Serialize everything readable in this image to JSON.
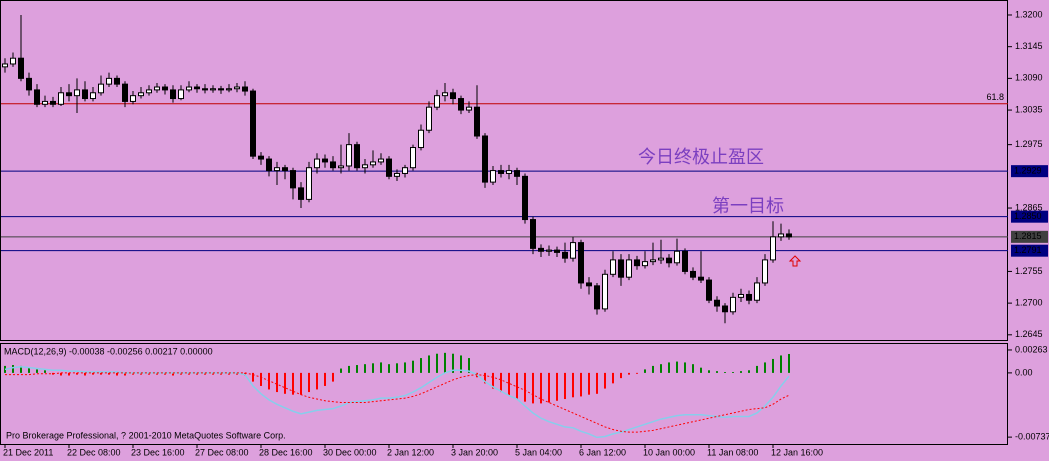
{
  "chart_data": [
    {
      "type": "candlestick",
      "categories": [
        "21 Dec 2011",
        null,
        null,
        null,
        null,
        null,
        null,
        null,
        "22 Dec 08:00",
        null,
        null,
        null,
        null,
        null,
        null,
        null,
        "23 Dec 16:00",
        null,
        null,
        null,
        null,
        null,
        null,
        null,
        "27 Dec 08:00",
        null,
        null,
        null,
        null,
        null,
        null,
        null,
        "28 Dec 16:00",
        null,
        null,
        null,
        null,
        null,
        null,
        null,
        "30 Dec 00:00",
        null,
        null,
        null,
        null,
        null,
        null,
        null,
        "2 Jan 12:00",
        null,
        null,
        null,
        null,
        null,
        null,
        null,
        "3 Jan 20:00",
        null,
        null,
        null,
        null,
        null,
        null,
        null,
        "5 Jan 04:00",
        null,
        null,
        null,
        null,
        null,
        null,
        null,
        "6 Jan 12:00",
        null,
        null,
        null,
        null,
        null,
        null,
        null,
        "10 Jan 00:00",
        null,
        null,
        null,
        null,
        null,
        null,
        null,
        "11 Jan 08:00",
        null,
        null,
        null,
        null,
        null,
        null,
        null,
        "12 Jan 16:00",
        null,
        null
      ],
      "ohlc": [
        [
          1.311,
          1.3125,
          1.31,
          1.3115
        ],
        [
          1.3115,
          1.3135,
          1.311,
          1.3125
        ],
        [
          1.3125,
          1.32,
          1.3085,
          1.309
        ],
        [
          1.309,
          1.31,
          1.306,
          1.307
        ],
        [
          1.307,
          1.308,
          1.304,
          1.3045
        ],
        [
          1.3045,
          1.306,
          1.304,
          1.305
        ],
        [
          1.305,
          1.3058,
          1.304,
          1.3045
        ],
        [
          1.3045,
          1.3075,
          1.3042,
          1.3065
        ],
        [
          1.3065,
          1.308,
          1.305,
          1.306
        ],
        [
          1.306,
          1.309,
          1.303,
          1.307
        ],
        [
          1.307,
          1.3085,
          1.305,
          1.3055
        ],
        [
          1.3055,
          1.3075,
          1.305,
          1.3065
        ],
        [
          1.3065,
          1.3095,
          1.306,
          1.308
        ],
        [
          1.308,
          1.31,
          1.3075,
          1.309
        ],
        [
          1.309,
          1.3095,
          1.3075,
          1.308
        ],
        [
          1.308,
          1.3085,
          1.304,
          1.305
        ],
        [
          1.305,
          1.3068,
          1.3045,
          1.306
        ],
        [
          1.306,
          1.3075,
          1.3055,
          1.3065
        ],
        [
          1.3065,
          1.3078,
          1.306,
          1.307
        ],
        [
          1.307,
          1.3082,
          1.3065,
          1.3075
        ],
        [
          1.3075,
          1.308,
          1.3062,
          1.307
        ],
        [
          1.307,
          1.3078,
          1.3048,
          1.3055
        ],
        [
          1.3055,
          1.3078,
          1.3052,
          1.307
        ],
        [
          1.307,
          1.3085,
          1.3066,
          1.3075
        ],
        [
          1.3075,
          1.308,
          1.3065,
          1.3072
        ],
        [
          1.3072,
          1.308,
          1.3064,
          1.307
        ],
        [
          1.307,
          1.3078,
          1.3065,
          1.3072
        ],
        [
          1.3072,
          1.3077,
          1.3063,
          1.307
        ],
        [
          1.307,
          1.308,
          1.3066,
          1.3072
        ],
        [
          1.3072,
          1.3082,
          1.3066,
          1.3075
        ],
        [
          1.3075,
          1.3085,
          1.306,
          1.3068
        ],
        [
          1.3068,
          1.3072,
          1.295,
          1.2955
        ],
        [
          1.2955,
          1.2962,
          1.294,
          1.295
        ],
        [
          1.295,
          1.2955,
          1.292,
          1.293
        ],
        [
          1.293,
          1.2945,
          1.2905,
          1.2935
        ],
        [
          1.2935,
          1.294,
          1.2915,
          1.293
        ],
        [
          1.293,
          1.2935,
          1.288,
          1.29
        ],
        [
          1.29,
          1.291,
          1.2865,
          1.288
        ],
        [
          1.288,
          1.2945,
          1.2875,
          1.2935
        ],
        [
          1.2935,
          1.296,
          1.2925,
          1.295
        ],
        [
          1.295,
          1.2958,
          1.2935,
          1.2945
        ],
        [
          1.2945,
          1.2955,
          1.293,
          1.2935
        ],
        [
          1.2935,
          1.2975,
          1.2925,
          1.2938
        ],
        [
          1.2938,
          1.2995,
          1.293,
          1.2975
        ],
        [
          1.2975,
          1.298,
          1.293,
          1.2935
        ],
        [
          1.2935,
          1.295,
          1.2925,
          1.294
        ],
        [
          1.294,
          1.2965,
          1.2935,
          1.2945
        ],
        [
          1.2945,
          1.296,
          1.294,
          1.295
        ],
        [
          1.295,
          1.2955,
          1.2915,
          1.292
        ],
        [
          1.292,
          1.2932,
          1.2912,
          1.2925
        ],
        [
          1.2925,
          1.294,
          1.2918,
          1.2935
        ],
        [
          1.2935,
          1.2975,
          1.293,
          1.297
        ],
        [
          1.297,
          1.301,
          1.2965,
          1.3
        ],
        [
          1.3,
          1.305,
          1.2995,
          1.304
        ],
        [
          1.304,
          1.307,
          1.3035,
          1.306
        ],
        [
          1.306,
          1.3082,
          1.305,
          1.3065
        ],
        [
          1.3065,
          1.3072,
          1.3045,
          1.3055
        ],
        [
          1.3055,
          1.306,
          1.3028,
          1.3035
        ],
        [
          1.3035,
          1.305,
          1.303,
          1.304
        ],
        [
          1.304,
          1.3078,
          1.2985,
          1.299
        ],
        [
          1.299,
          1.2995,
          1.29,
          1.291
        ],
        [
          1.291,
          1.2938,
          1.2905,
          1.293
        ],
        [
          1.293,
          1.294,
          1.2918,
          1.2925
        ],
        [
          1.2925,
          1.294,
          1.2915,
          1.293
        ],
        [
          1.293,
          1.2935,
          1.2905,
          1.292
        ],
        [
          1.292,
          1.2925,
          1.2838,
          1.2845
        ],
        [
          1.2845,
          1.285,
          1.2785,
          1.2795
        ],
        [
          1.2795,
          1.2802,
          1.278,
          1.279
        ],
        [
          1.279,
          1.28,
          1.2782,
          1.2792
        ],
        [
          1.2792,
          1.2798,
          1.278,
          1.2788
        ],
        [
          1.2788,
          1.2805,
          1.277,
          1.2778
        ],
        [
          1.2778,
          1.2815,
          1.2772,
          1.2805
        ],
        [
          1.2805,
          1.281,
          1.2725,
          1.2735
        ],
        [
          1.2735,
          1.2745,
          1.2715,
          1.273
        ],
        [
          1.273,
          1.2735,
          1.268,
          1.269
        ],
        [
          1.269,
          1.2758,
          1.2685,
          1.275
        ],
        [
          1.275,
          1.279,
          1.2745,
          1.2775
        ],
        [
          1.2775,
          1.2785,
          1.273,
          1.2745
        ],
        [
          1.2745,
          1.2785,
          1.274,
          1.2775
        ],
        [
          1.2775,
          1.2782,
          1.2758,
          1.2765
        ],
        [
          1.2765,
          1.279,
          1.276,
          1.2772
        ],
        [
          1.2772,
          1.2805,
          1.2766,
          1.2775
        ],
        [
          1.2775,
          1.281,
          1.2768,
          1.2778
        ],
        [
          1.2778,
          1.2785,
          1.2762,
          1.277
        ],
        [
          1.277,
          1.2812,
          1.2765,
          1.279
        ],
        [
          1.279,
          1.2795,
          1.275,
          1.2755
        ],
        [
          1.2755,
          1.2762,
          1.274,
          1.2745
        ],
        [
          1.2745,
          1.279,
          1.2735,
          1.274
        ],
        [
          1.274,
          1.2745,
          1.27,
          1.2705
        ],
        [
          1.2705,
          1.2712,
          1.2685,
          1.2695
        ],
        [
          1.2695,
          1.27,
          1.2665,
          1.2685
        ],
        [
          1.2685,
          1.2718,
          1.268,
          1.271
        ],
        [
          1.271,
          1.2725,
          1.2702,
          1.2715
        ],
        [
          1.2715,
          1.2722,
          1.2698,
          1.2705
        ],
        [
          1.2705,
          1.2745,
          1.27,
          1.2735
        ],
        [
          1.2735,
          1.2785,
          1.273,
          1.2775
        ],
        [
          1.2775,
          1.2842,
          1.277,
          1.2815
        ],
        [
          1.2815,
          1.2838,
          1.2808,
          1.282
        ],
        [
          1.282,
          1.2828,
          1.281,
          1.2815
        ]
      ],
      "up_color": "#ffffff",
      "down_color": "#000000",
      "wick_color": "#000000",
      "ylim": [
        1.2636,
        1.3226
      ],
      "yticks": [
        {
          "value": 1.32,
          "label": "1.3200"
        },
        {
          "value": 1.3145,
          "label": "1.3145"
        },
        {
          "value": 1.309,
          "label": "1.3090"
        },
        {
          "value": 1.3035,
          "label": "1.3035"
        },
        {
          "value": 1.2975,
          "label": "1.2975"
        },
        {
          "value": 1.2865,
          "label": "1.2865"
        },
        {
          "value": 1.2755,
          "label": "1.2755"
        },
        {
          "value": 1.27,
          "label": "1.2700"
        },
        {
          "value": 1.2645,
          "label": "1.2645"
        }
      ],
      "levels": [
        {
          "value": 1.3046,
          "label": "61.8",
          "color": "#c00000"
        },
        {
          "value": 1.2929,
          "label": "1.2929",
          "color": "#000080"
        },
        {
          "value": 1.285,
          "label": "1.2850",
          "color": "#000080"
        },
        {
          "value": 1.2815,
          "label": "1.2815",
          "color": "#404040"
        },
        {
          "value": 1.2791,
          "label": "1.2791",
          "color": "#000080"
        }
      ],
      "annotations": [
        "今日终极止盈区",
        "第一目标"
      ]
    },
    {
      "type": "macd",
      "title": "MACD(12,26,9) -0.00038 -0.00256 0.00217 0.00000",
      "ylim": [
        -0.0077,
        0.0032
      ],
      "yticks": [
        {
          "value": 0.00263,
          "label": "0.00263"
        },
        {
          "value": 0,
          "label": "0.00"
        },
        {
          "value": -0.00737,
          "label": "-0.00737"
        }
      ],
      "series": [
        {
          "style": "bar",
          "color": "#008000",
          "down_color": "#ff0000",
          "values": [
            0.0008,
            0.0009,
            0.0008,
            0.0006,
            0.0004,
            0.0003,
            -0.0002,
            -0.0003,
            -0.0003,
            -0.0002,
            -0.0003,
            -0.0002,
            -0.0002,
            -0.0002,
            -0.0003,
            -0.0003,
            -0.0002,
            -0.0002,
            -0.0002,
            -0.0002,
            -0.0002,
            -0.0003,
            -0.0002,
            -0.0002,
            -0.0002,
            -0.0002,
            -0.0002,
            -0.0002,
            -0.0002,
            -0.0002,
            -0.0003,
            -0.001,
            -0.0015,
            -0.0019,
            -0.0022,
            -0.0024,
            -0.0025,
            -0.0025,
            -0.0022,
            -0.0019,
            -0.0015,
            -0.001,
            0.0005,
            0.0008,
            0.0009,
            0.001,
            0.0011,
            0.0012,
            0.001,
            0.0011,
            0.0012,
            0.0014,
            0.0017,
            0.002,
            0.0022,
            0.0023,
            0.0022,
            0.002,
            0.0017,
            -0.0005,
            -0.0012,
            -0.0018,
            -0.0022,
            -0.0026,
            -0.003,
            -0.0033,
            -0.0035,
            -0.0035,
            -0.0034,
            -0.0032,
            -0.003,
            -0.0028,
            -0.0027,
            -0.0025,
            -0.0024,
            -0.0018,
            -0.0012,
            -0.0006,
            -0.0002,
            -0.0001,
            0.0004,
            0.0008,
            0.001,
            0.0012,
            0.0013,
            0.0012,
            0.001,
            0.0006,
            0.0003,
            0.0002,
            0.0001,
            0.0001,
            0.0002,
            0.0003,
            0.0008,
            0.0012,
            0.0016,
            0.002,
            0.00217
          ]
        },
        {
          "style": "line",
          "color": "#87ceeb",
          "values": [
            0.0004,
            0.0006,
            0.0007,
            0.0006,
            0.0005,
            0.0004,
            0.0003,
            0.0003,
            0.0002,
            0.0002,
            0.0001,
            0.0001,
            0.0001,
            0.0001,
            0.0001,
            0,
            0,
            0,
            0,
            0,
            0,
            0,
            0,
            0,
            0,
            0,
            0,
            0,
            0,
            0,
            -0.0002,
            -0.0015,
            -0.0024,
            -0.0031,
            -0.0036,
            -0.004,
            -0.0044,
            -0.0047,
            -0.0045,
            -0.0043,
            -0.0042,
            -0.0041,
            -0.0038,
            -0.0034,
            -0.0033,
            -0.0032,
            -0.0031,
            -0.0029,
            -0.0029,
            -0.0028,
            -0.0026,
            -0.0022,
            -0.0017,
            -0.0011,
            -0.0005,
            0,
            0.0003,
            0.0003,
            0.0002,
            -0.0002,
            -0.001,
            -0.0016,
            -0.0021,
            -0.0026,
            -0.003,
            -0.0038,
            -0.0046,
            -0.0052,
            -0.0056,
            -0.0059,
            -0.0062,
            -0.0063,
            -0.0067,
            -0.007,
            -0.0074,
            -0.0073,
            -0.007,
            -0.0068,
            -0.0065,
            -0.0062,
            -0.0059,
            -0.0056,
            -0.0053,
            -0.0051,
            -0.0049,
            -0.0048,
            -0.0048,
            -0.0048,
            -0.0049,
            -0.005,
            -0.0051,
            -0.005,
            -0.005,
            -0.005,
            -0.0046,
            -0.0038,
            -0.0028,
            -0.0015,
            -0.00038
          ]
        },
        {
          "style": "dotted",
          "color": "#ff0000",
          "values": [
            -0.0002,
            -0.0002,
            -0.0002,
            -0.0002,
            -0.0001,
            -0.0001,
            -0.0001,
            0,
            0,
            0,
            0,
            0,
            0,
            0,
            0,
            0,
            0,
            0,
            0,
            0,
            0,
            0,
            0,
            0,
            0,
            0,
            0,
            0,
            0,
            0,
            0,
            -0.0002,
            -0.0005,
            -0.0009,
            -0.0013,
            -0.0017,
            -0.0021,
            -0.0025,
            -0.0028,
            -0.003,
            -0.0032,
            -0.0033,
            -0.0034,
            -0.0034,
            -0.0034,
            -0.0034,
            -0.0033,
            -0.0032,
            -0.0031,
            -0.003,
            -0.0029,
            -0.0027,
            -0.0024,
            -0.002,
            -0.0016,
            -0.0012,
            -0.0008,
            -0.0005,
            -0.0003,
            -0.0002,
            -0.0003,
            -0.0005,
            -0.0008,
            -0.0012,
            -0.0016,
            -0.002,
            -0.0025,
            -0.003,
            -0.0034,
            -0.0038,
            -0.0042,
            -0.0046,
            -0.005,
            -0.0054,
            -0.0058,
            -0.0062,
            -0.0065,
            -0.0067,
            -0.0068,
            -0.0068,
            -0.0067,
            -0.0066,
            -0.0064,
            -0.0062,
            -0.006,
            -0.0058,
            -0.0056,
            -0.0054,
            -0.0052,
            -0.005,
            -0.0048,
            -0.0046,
            -0.0044,
            -0.0042,
            -0.0041,
            -0.004,
            -0.0036,
            -0.003,
            -0.00256
          ]
        }
      ]
    }
  ],
  "footer": "Pro Brokerage Professional, ? 2001-2010 MetaQuotes Software Corp."
}
